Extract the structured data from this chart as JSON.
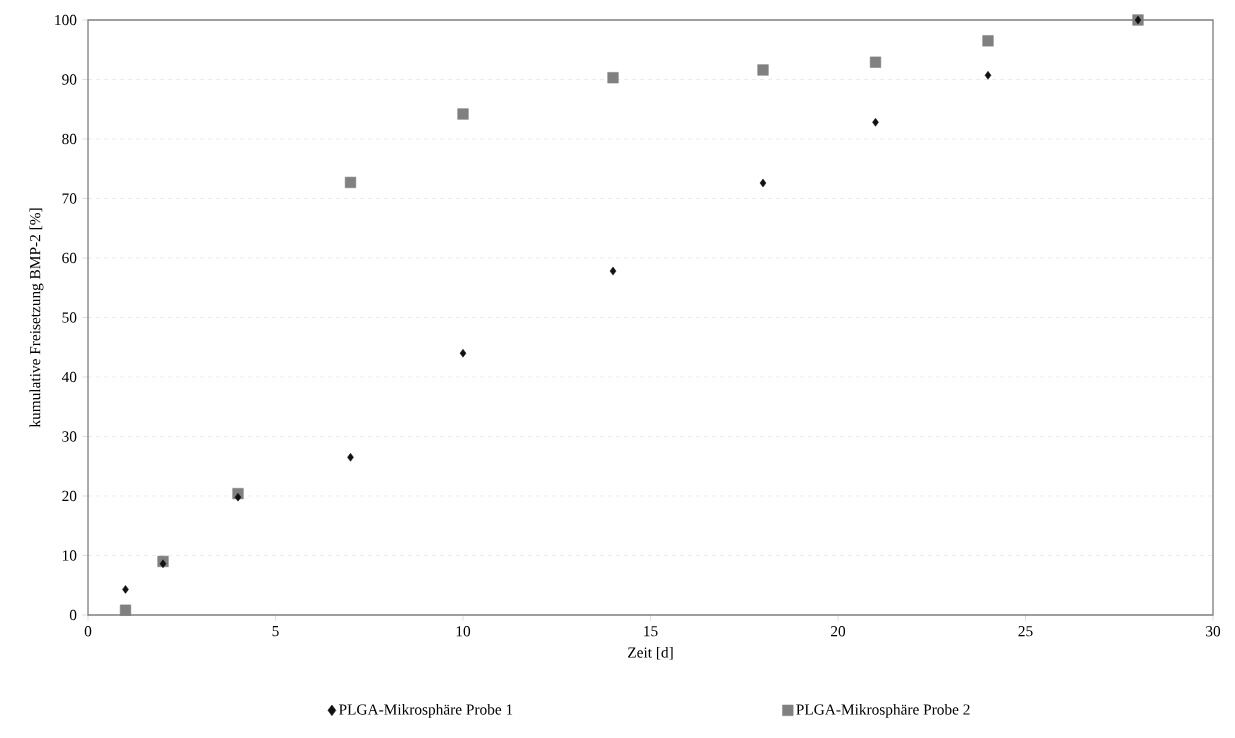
{
  "chart_data": {
    "type": "scatter",
    "xlabel": "Zeit [d]",
    "ylabel": "kumulative Freisetzung BMP-2 [%]",
    "xlim": [
      0,
      30
    ],
    "xticks": [
      0,
      5,
      10,
      15,
      20,
      25,
      30
    ],
    "ylim": [
      0,
      100
    ],
    "yticks": [
      0,
      10,
      20,
      30,
      40,
      50,
      60,
      70,
      80,
      90,
      100
    ],
    "grid": "y",
    "legend": "bottom",
    "series": [
      {
        "name": "PLGA-Mikrosphäre Probe 1",
        "color": "#111111",
        "marker": "diamond",
        "x": [
          1,
          2,
          4,
          7,
          10,
          14,
          18,
          21,
          24,
          28
        ],
        "values": [
          4.3,
          8.6,
          19.8,
          26.5,
          44.0,
          57.8,
          72.6,
          82.8,
          90.7,
          100
        ]
      },
      {
        "name": "PLGA-Mikrosphäre Probe 2",
        "color": "#808080",
        "marker": "square",
        "x": [
          1,
          2,
          4,
          7,
          10,
          14,
          18,
          21,
          24,
          28
        ],
        "values": [
          0.8,
          9.0,
          20.4,
          72.7,
          84.2,
          90.3,
          91.6,
          92.9,
          96.5,
          100
        ]
      }
    ]
  }
}
